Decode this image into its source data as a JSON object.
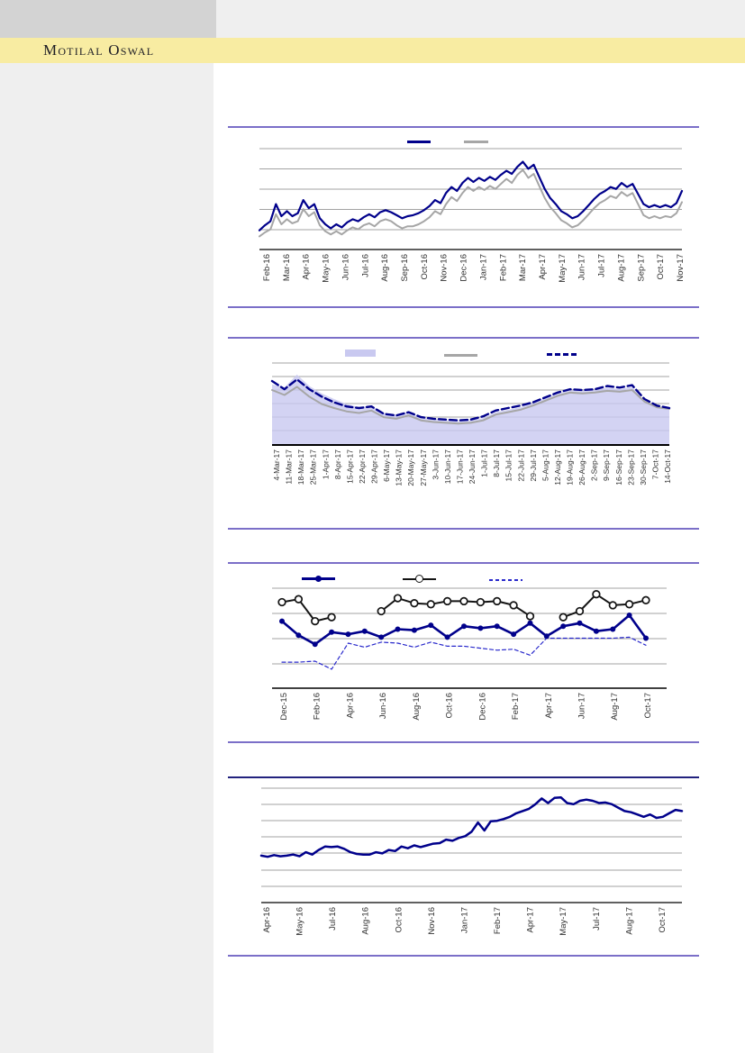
{
  "page": {
    "brand": "Motilal Oswal",
    "colors": {
      "band_yellow": "#f8eca2",
      "sidebar_gray": "#efefef",
      "top_block_gray": "#d3d3d3",
      "rule_purple": "#7b6fc8",
      "rule_navy": "#22227e",
      "navy": "#00008b",
      "series_gray": "#a6a6a6",
      "area_fill": "#c9c9f0",
      "dashed_blue": "#2929cc",
      "black": "#141414",
      "label_text": "#303030"
    }
  },
  "chart_data": [
    {
      "type": "line",
      "title": "",
      "y_axis": {
        "labels_visible": false,
        "units": "percent-of-plot-height (no y-axis labels shown)",
        "ylim": [
          0,
          100
        ]
      },
      "grid": true,
      "legend": {
        "position": "top",
        "items": [
          {
            "swatch": "line",
            "color": "#00008b",
            "label": ""
          },
          {
            "swatch": "line",
            "color": "#a6a6a6",
            "label": ""
          }
        ]
      },
      "categories": [
        "Feb-16",
        "Mar-16",
        "Apr-16",
        "May-16",
        "Jun-16",
        "Jul-16",
        "Aug-16",
        "Sep-16",
        "Oct-16",
        "Nov-16",
        "Dec-16",
        "Jan-17",
        "Feb-17",
        "Mar-17",
        "Apr-17",
        "May-17",
        "Jun-17",
        "Jul-17",
        "Aug-17",
        "Sep-17",
        "Oct-17",
        "Nov-17"
      ],
      "x_note": "daily data; values evenly spaced across plot width, categories are monthly tick labels",
      "series": [
        {
          "name": "gray-line",
          "color": "#a6a6a6",
          "width": 2,
          "values": [
            13,
            17,
            20,
            35,
            25,
            30,
            26,
            28,
            40,
            33,
            37,
            24,
            18,
            15,
            18,
            15,
            19,
            22,
            20,
            24,
            26,
            23,
            28,
            30,
            28,
            24,
            21,
            23,
            23,
            25,
            28,
            32,
            38,
            35,
            45,
            52,
            48,
            56,
            62,
            58,
            62,
            59,
            63,
            60,
            65,
            70,
            66,
            74,
            79,
            71,
            75,
            63,
            51,
            42,
            36,
            29,
            26,
            22,
            24,
            29,
            35,
            41,
            46,
            49,
            53,
            51,
            57,
            53,
            56,
            45,
            34,
            31,
            33,
            31,
            33,
            32,
            36,
            47
          ]
        },
        {
          "name": "navy-line",
          "color": "#00008b",
          "width": 2.2,
          "values": [
            19,
            24,
            28,
            45,
            33,
            38,
            33,
            36,
            49,
            41,
            45,
            31,
            25,
            21,
            25,
            22,
            27,
            30,
            28,
            32,
            35,
            32,
            37,
            39,
            37,
            34,
            31,
            33,
            34,
            36,
            39,
            43,
            49,
            46,
            56,
            62,
            58,
            66,
            71,
            67,
            71,
            68,
            72,
            69,
            74,
            78,
            75,
            82,
            87,
            80,
            84,
            72,
            60,
            51,
            45,
            38,
            35,
            31,
            33,
            38,
            44,
            50,
            55,
            58,
            62,
            60,
            66,
            62,
            65,
            55,
            45,
            42,
            44,
            42,
            44,
            42,
            46,
            58
          ]
        }
      ]
    },
    {
      "type": "area",
      "title": "",
      "y_axis": {
        "labels_visible": false,
        "units": "percent-of-plot-height (no y-axis labels shown)",
        "ylim": [
          0,
          100
        ]
      },
      "grid": true,
      "legend": {
        "position": "top",
        "items": [
          {
            "swatch": "area",
            "color": "#c9c9f0",
            "label": ""
          },
          {
            "swatch": "line",
            "color": "#a6a6a6",
            "label": ""
          },
          {
            "swatch": "dashed",
            "color": "#00008b",
            "label": ""
          }
        ]
      },
      "categories": [
        "4-Mar-17",
        "11-Mar-17",
        "18-Mar-17",
        "25-Mar-17",
        "1-Apr-17",
        "8-Apr-17",
        "15-Apr-17",
        "22-Apr-17",
        "29-Apr-17",
        "6-May-17",
        "13-May-17",
        "20-May-17",
        "27-May-17",
        "3-Jun-17",
        "10-Jun-17",
        "17-Jun-17",
        "24-Jun-17",
        "1-Jul-17",
        "8-Jul-17",
        "15-Jul-17",
        "22-Jul-17",
        "29-Jul-17",
        "5-Aug-17",
        "12-Aug-17",
        "19-Aug-17",
        "26-Aug-17",
        "2-Sep-17",
        "9-Sep-17",
        "16-Sep-17",
        "23-Sep-17",
        "30-Sep-17",
        "7-Oct-17",
        "14-Oct-17"
      ],
      "series": [
        {
          "name": "area-fill",
          "render": "area",
          "color": "#c9c9f0",
          "values": [
            74,
            70,
            86,
            72,
            63,
            56,
            50,
            46,
            48,
            39,
            37,
            41,
            34,
            32,
            30,
            29,
            30,
            33,
            40,
            43,
            46,
            51,
            57,
            63,
            67,
            66,
            67,
            70,
            68,
            71,
            54,
            47,
            45
          ]
        },
        {
          "name": "gray-line",
          "color": "#a6a6a6",
          "width": 2,
          "values": [
            67,
            61,
            71,
            59,
            50,
            45,
            41,
            39,
            42,
            34,
            32,
            36,
            30,
            28,
            27,
            26,
            27,
            30,
            37,
            40,
            43,
            48,
            54,
            60,
            64,
            63,
            64,
            66,
            65,
            67,
            53,
            46,
            44
          ]
        },
        {
          "name": "navy-dashed-line",
          "color": "#00008b",
          "width": 2.4,
          "dash": "8 4",
          "values": [
            78,
            68,
            80,
            68,
            59,
            52,
            47,
            45,
            47,
            38,
            36,
            40,
            34,
            32,
            31,
            30,
            31,
            35,
            42,
            45,
            48,
            52,
            58,
            64,
            68,
            67,
            68,
            72,
            70,
            73,
            56,
            48,
            45
          ]
        }
      ]
    },
    {
      "type": "line",
      "title": "",
      "y_axis": {
        "labels_visible": false,
        "units": "percent-of-plot-height (no y-axis labels shown)",
        "ylim": [
          0,
          100
        ]
      },
      "grid": true,
      "legend": {
        "position": "top",
        "items": [
          {
            "swatch": "line-dot",
            "color": "#00008b",
            "label": ""
          },
          {
            "swatch": "line-circle",
            "color": "#141414",
            "label": ""
          },
          {
            "swatch": "dashed-thin",
            "color": "#2929cc",
            "label": ""
          }
        ]
      },
      "categories": [
        "Dec-15",
        "Feb-16",
        "Apr-16",
        "Jun-16",
        "Aug-16",
        "Oct-16",
        "Dec-16",
        "Feb-17",
        "Apr-17",
        "Jun-17",
        "Aug-17",
        "Oct-17"
      ],
      "x_note": "23 monthly data points Dec-15 to Oct-17; tick labels every second month; nulls = gaps in open-circle series",
      "series": [
        {
          "name": "blue-dashed-thin",
          "color": "#2929cc",
          "width": 1.2,
          "dash": "4 3",
          "values": [
            26,
            26,
            27,
            19,
            45,
            41,
            46,
            45,
            41,
            46,
            42,
            42,
            40,
            38,
            39,
            33,
            50,
            50,
            50,
            50,
            50,
            51,
            43
          ]
        },
        {
          "name": "black-open-circle",
          "color": "#141414",
          "width": 2,
          "marker": "open",
          "values": [
            86,
            89,
            67,
            71,
            null,
            null,
            77,
            90,
            85,
            84,
            87,
            87,
            86,
            87,
            83,
            72,
            null,
            71,
            77,
            94,
            83,
            84,
            88
          ]
        },
        {
          "name": "navy-filled-dot",
          "color": "#00008b",
          "width": 2.6,
          "marker": "filled",
          "values": [
            67,
            53,
            44,
            56,
            54,
            57,
            51,
            59,
            58,
            63,
            51,
            62,
            60,
            62,
            54,
            65,
            52,
            62,
            65,
            57,
            59,
            73,
            50
          ]
        }
      ]
    },
    {
      "type": "line",
      "title": "",
      "y_axis": {
        "labels_visible": false,
        "units": "percent-of-plot-height (no y-axis labels shown)",
        "ylim": [
          0,
          100
        ]
      },
      "grid": true,
      "legend": {
        "position": "none",
        "items": []
      },
      "categories": [
        "Apr-16",
        "May-16",
        "Jul-16",
        "Aug-16",
        "Oct-16",
        "Nov-16",
        "Jan-17",
        "Feb-17",
        "Apr-17",
        "May-17",
        "Jul-17",
        "Aug-17",
        "Oct-17"
      ],
      "x_note": "weekly data; values evenly spaced across plot width, categories are tick labels",
      "series": [
        {
          "name": "navy-line",
          "color": "#00008b",
          "width": 2.5,
          "values": [
            41,
            40,
            41.5,
            40.5,
            41,
            42,
            40.5,
            44,
            42,
            46,
            49,
            48.5,
            49,
            47,
            44,
            42.5,
            42,
            42,
            44,
            43,
            46,
            45,
            49,
            47.5,
            50,
            48.5,
            50,
            51.5,
            52,
            55,
            54,
            56.5,
            58,
            62,
            70,
            63,
            71,
            71.5,
            73,
            75,
            78,
            80,
            82,
            86,
            91,
            87,
            91.5,
            92,
            87,
            86,
            89,
            90,
            89,
            87,
            87.5,
            86,
            83,
            80,
            79,
            77,
            75,
            77,
            74,
            75,
            78,
            81,
            80
          ]
        }
      ]
    }
  ]
}
